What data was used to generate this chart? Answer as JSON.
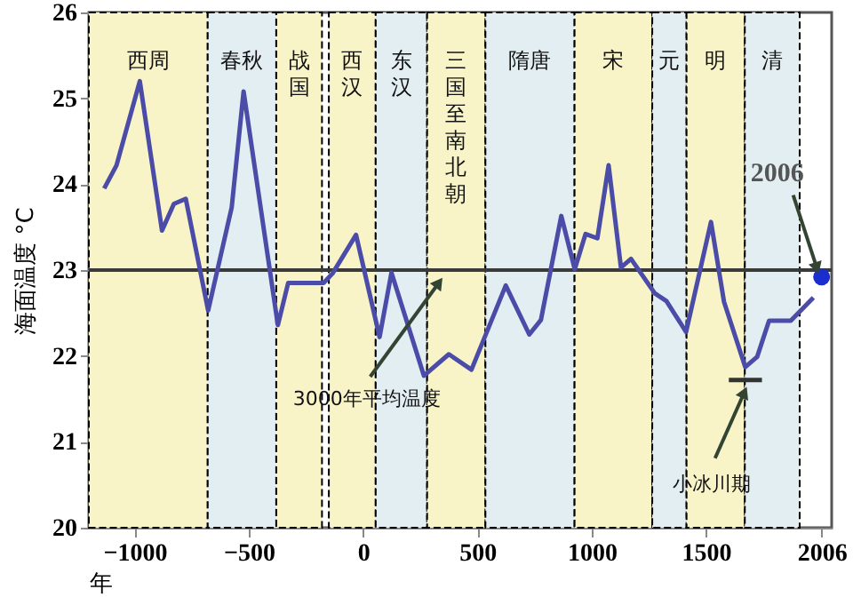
{
  "chart_data": {
    "type": "line",
    "xlabel": "年",
    "ylabel": "海面温度 °C",
    "xlim": [
      -1200,
      2050
    ],
    "ylim": [
      20,
      26
    ],
    "xticks": [
      -1000,
      -500,
      0,
      500,
      1000,
      1500,
      2006
    ],
    "yticks": [
      20,
      21,
      22,
      23,
      24,
      25,
      26
    ],
    "grid": false,
    "marker": "none",
    "line_style": "solid",
    "series": [
      {
        "color": "#4b4ba8",
        "x": [
          -1133,
          -1079,
          -977,
          -880,
          -828,
          -776,
          -678,
          -575,
          -523,
          -373,
          -328,
          -173,
          -134,
          -31,
          72,
          124,
          266,
          375,
          474,
          624,
          727,
          778,
          867,
          926,
          973,
          1025,
          1074,
          1128,
          1172,
          1276,
          1327,
          1413,
          1522,
          1579,
          1672,
          1724,
          1776,
          1871,
          1970
        ],
        "values": [
          23.95,
          24.22,
          25.2,
          23.46,
          23.77,
          23.83,
          22.53,
          23.73,
          25.08,
          22.36,
          22.85,
          22.85,
          22.96,
          23.41,
          22.22,
          22.97,
          21.77,
          22.02,
          21.84,
          22.82,
          22.25,
          22.42,
          23.63,
          23.01,
          23.42,
          23.37,
          24.22,
          23.03,
          23.13,
          22.73,
          22.64,
          22.28,
          23.56,
          22.63,
          21.87,
          21.99,
          22.41,
          22.41,
          22.68
        ]
      },
      {
        "type": "scatter",
        "color": "#1a2ed0",
        "marker": "circle",
        "x": [
          2006
        ],
        "values": [
          22.92
        ]
      },
      {
        "color": "#333333",
        "x": [
          1600,
          1745
        ],
        "values": [
          21.72,
          21.72
        ]
      }
    ],
    "ref_lines": [
      {
        "axis": "y",
        "value": 23,
        "label": "3000年平均温度",
        "color": "#3a3a3a"
      }
    ],
    "bands": [
      {
        "axis": "x",
        "from": -1200,
        "to": -680,
        "label": "西周",
        "color": "#f8f4c8"
      },
      {
        "axis": "x",
        "from": -680,
        "to": -380,
        "label": "春秋",
        "color": "#e3eef3"
      },
      {
        "axis": "x",
        "from": -380,
        "to": -180,
        "label": "战国",
        "color": "#f8f4c8"
      },
      {
        "axis": "x",
        "from": -150,
        "to": 55,
        "label": "西汉",
        "color": "#f8f4c8"
      },
      {
        "axis": "x",
        "from": 55,
        "to": 280,
        "label": "东汉",
        "color": "#e3eef3"
      },
      {
        "axis": "x",
        "from": 280,
        "to": 535,
        "label": "三国至南北朝",
        "color": "#f8f4c8"
      },
      {
        "axis": "x",
        "from": 535,
        "to": 925,
        "label": "隋唐",
        "color": "#e3eef3"
      },
      {
        "axis": "x",
        "from": 925,
        "to": 1265,
        "label": "宋",
        "color": "#f8f4c8"
      },
      {
        "axis": "x",
        "from": 1265,
        "to": 1415,
        "label": "元",
        "color": "#e3eef3"
      },
      {
        "axis": "x",
        "from": 1415,
        "to": 1670,
        "label": "明",
        "color": "#f8f4c8"
      },
      {
        "axis": "x",
        "from": 1670,
        "to": 1910,
        "label": "清",
        "color": "#e3eef3"
      }
    ],
    "annotations": [
      {
        "text": "2006",
        "x": 2006,
        "y": 22.92
      },
      {
        "text": "小冰川期",
        "x": 1672,
        "y": 21.72
      }
    ]
  }
}
